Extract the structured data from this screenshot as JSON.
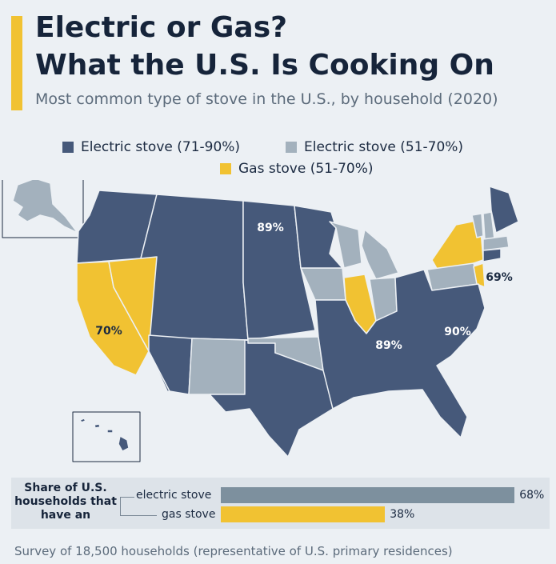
{
  "header": {
    "title_line1": "Electric or Gas?",
    "title_line2": "What the U.S. Is Cooking On",
    "subtitle": "Most common type of stove in the U.S., by household (2020)"
  },
  "colors": {
    "electric_high": "#46597a",
    "electric_mid": "#a3b1bd",
    "gas": "#f1c232",
    "share_bar_electric": "#7d909e",
    "share_bar_gas": "#f1c232"
  },
  "chart_data": [
    {
      "type": "map",
      "legend": [
        {
          "key": "electric_high",
          "label": "Electric stove (71-90%)"
        },
        {
          "key": "electric_mid",
          "label": "Electric stove (51-70%)"
        },
        {
          "key": "gas",
          "label": "Gas stove (51-70%)"
        }
      ],
      "regions": [
        {
          "name": "Pacific Northwest",
          "category": "electric_high"
        },
        {
          "name": "California",
          "category": "gas"
        },
        {
          "name": "Nevada",
          "category": "gas"
        },
        {
          "name": "Mountain West",
          "category": "electric_high"
        },
        {
          "name": "Arizona",
          "category": "electric_high"
        },
        {
          "name": "New Mexico",
          "category": "electric_mid"
        },
        {
          "name": "Texas",
          "category": "electric_high"
        },
        {
          "name": "Oklahoma",
          "category": "electric_mid"
        },
        {
          "name": "Plains",
          "category": "electric_high"
        },
        {
          "name": "Iowa",
          "category": "electric_mid"
        },
        {
          "name": "Wisconsin",
          "category": "electric_mid"
        },
        {
          "name": "Michigan",
          "category": "electric_mid"
        },
        {
          "name": "Illinois",
          "category": "gas"
        },
        {
          "name": "Indiana",
          "category": "electric_mid"
        },
        {
          "name": "Pennsylvania",
          "category": "electric_mid"
        },
        {
          "name": "New York",
          "category": "gas"
        },
        {
          "name": "New Jersey",
          "category": "gas"
        },
        {
          "name": "Vermont",
          "category": "electric_mid"
        },
        {
          "name": "New Hampshire",
          "category": "electric_mid"
        },
        {
          "name": "Massachusetts",
          "category": "electric_mid"
        },
        {
          "name": "Maine",
          "category": "electric_high"
        },
        {
          "name": "Southeast",
          "category": "electric_high"
        },
        {
          "name": "Alaska",
          "category": "electric_mid"
        },
        {
          "name": "Hawaii",
          "category": "electric_high"
        }
      ],
      "annotations": [
        {
          "label": "89%",
          "region": "North Dakota"
        },
        {
          "label": "70%",
          "region": "California"
        },
        {
          "label": "69%",
          "region": "New Jersey"
        },
        {
          "label": "89%",
          "region": "Tennessee"
        },
        {
          "label": "90%",
          "region": "North Carolina"
        }
      ]
    },
    {
      "type": "bar",
      "title": "Share of U.S. households that have an",
      "categories": [
        "electric stove",
        "gas stove"
      ],
      "values": [
        68,
        38
      ],
      "value_labels": [
        "68%",
        "38%"
      ],
      "unit": "%",
      "xlim": [
        0,
        70
      ]
    }
  ],
  "footnote": "Survey of 18,500 households (representative of U.S. primary residences)"
}
